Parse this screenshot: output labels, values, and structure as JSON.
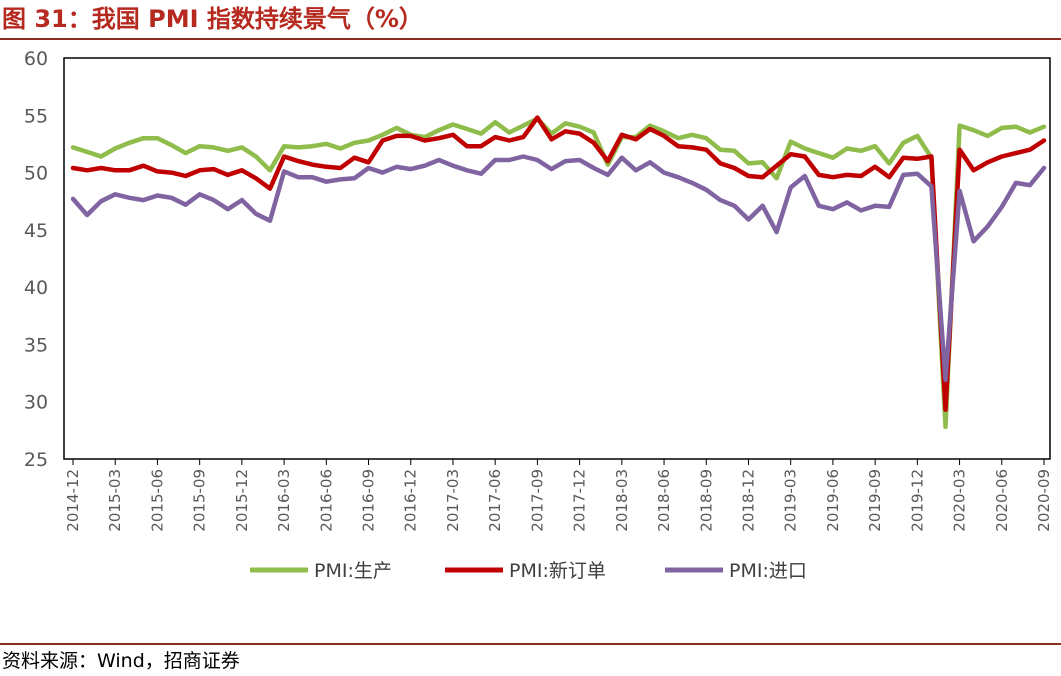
{
  "title": "图 31：我国 PMI 指数持续景气（%）",
  "source": "资料来源：Wind，招商证券",
  "chart_data": {
    "type": "line",
    "ylim": [
      25,
      60
    ],
    "y_ticks": [
      25,
      30,
      35,
      40,
      45,
      50,
      55,
      60
    ],
    "x_tick_labels": [
      "2014-12",
      "2015-03",
      "2015-06",
      "2015-09",
      "2015-12",
      "2016-03",
      "2016-06",
      "2016-09",
      "2016-12",
      "2017-03",
      "2017-06",
      "2017-09",
      "2017-12",
      "2018-03",
      "2018-06",
      "2018-09",
      "2018-12",
      "2019-03",
      "2019-06",
      "2019-09",
      "2019-12",
      "2020-03",
      "2020-06",
      "2020-09"
    ],
    "x": [
      "2014-12",
      "2015-01",
      "2015-02",
      "2015-03",
      "2015-04",
      "2015-05",
      "2015-06",
      "2015-07",
      "2015-08",
      "2015-09",
      "2015-10",
      "2015-11",
      "2015-12",
      "2016-01",
      "2016-02",
      "2016-03",
      "2016-04",
      "2016-05",
      "2016-06",
      "2016-07",
      "2016-08",
      "2016-09",
      "2016-10",
      "2016-11",
      "2016-12",
      "2017-01",
      "2017-02",
      "2017-03",
      "2017-04",
      "2017-05",
      "2017-06",
      "2017-07",
      "2017-08",
      "2017-09",
      "2017-10",
      "2017-11",
      "2017-12",
      "2018-01",
      "2018-02",
      "2018-03",
      "2018-04",
      "2018-05",
      "2018-06",
      "2018-07",
      "2018-08",
      "2018-09",
      "2018-10",
      "2018-11",
      "2018-12",
      "2019-01",
      "2019-02",
      "2019-03",
      "2019-04",
      "2019-05",
      "2019-06",
      "2019-07",
      "2019-08",
      "2019-09",
      "2019-10",
      "2019-11",
      "2019-12",
      "2020-01",
      "2020-02",
      "2020-03",
      "2020-04",
      "2020-05",
      "2020-06",
      "2020-07",
      "2020-08",
      "2020-09"
    ],
    "series": [
      {
        "name": "PMI:生产",
        "color": "#8fbc4a",
        "values": [
          52.2,
          51.8,
          51.4,
          52.1,
          52.6,
          53.0,
          53.0,
          52.4,
          51.7,
          52.3,
          52.2,
          51.9,
          52.2,
          51.4,
          50.2,
          52.3,
          52.2,
          52.3,
          52.5,
          52.1,
          52.6,
          52.8,
          53.3,
          53.9,
          53.3,
          53.1,
          53.7,
          54.2,
          53.8,
          53.4,
          54.4,
          53.5,
          54.1,
          54.7,
          53.4,
          54.3,
          54.0,
          53.5,
          50.7,
          53.1,
          53.1,
          54.1,
          53.6,
          53.0,
          53.3,
          53.0,
          52.0,
          51.9,
          50.8,
          50.9,
          49.5,
          52.7,
          52.1,
          51.7,
          51.3,
          52.1,
          51.9,
          52.3,
          50.8,
          52.6,
          53.2,
          51.3,
          27.8,
          54.1,
          53.7,
          53.2,
          53.9,
          54.0,
          53.5,
          54.0
        ]
      },
      {
        "name": "PMI:新订单",
        "color": "#c00000",
        "values": [
          50.4,
          50.2,
          50.4,
          50.2,
          50.2,
          50.6,
          50.1,
          50.0,
          49.7,
          50.2,
          50.3,
          49.8,
          50.2,
          49.5,
          48.6,
          51.4,
          51.0,
          50.7,
          50.5,
          50.4,
          51.3,
          50.9,
          52.8,
          53.2,
          53.2,
          52.8,
          53.0,
          53.3,
          52.3,
          52.3,
          53.1,
          52.8,
          53.1,
          54.8,
          52.9,
          53.6,
          53.4,
          52.6,
          51.0,
          53.3,
          52.9,
          53.8,
          53.2,
          52.3,
          52.2,
          52.0,
          50.8,
          50.4,
          49.7,
          49.6,
          50.6,
          51.6,
          51.4,
          49.8,
          49.6,
          49.8,
          49.7,
          50.5,
          49.6,
          51.3,
          51.2,
          51.4,
          29.3,
          52.0,
          50.2,
          50.9,
          51.4,
          51.7,
          52.0,
          52.8
        ]
      },
      {
        "name": "PMI:进口",
        "color": "#8064a2",
        "values": [
          47.7,
          46.3,
          47.5,
          48.1,
          47.8,
          47.6,
          48.0,
          47.8,
          47.2,
          48.1,
          47.6,
          46.8,
          47.6,
          46.4,
          45.8,
          50.1,
          49.6,
          49.6,
          49.2,
          49.4,
          49.5,
          50.4,
          50.0,
          50.5,
          50.3,
          50.6,
          51.1,
          50.6,
          50.2,
          49.9,
          51.1,
          51.1,
          51.4,
          51.1,
          50.3,
          51.0,
          51.1,
          50.4,
          49.8,
          51.3,
          50.2,
          50.9,
          50.0,
          49.6,
          49.1,
          48.5,
          47.6,
          47.1,
          45.9,
          47.1,
          44.8,
          48.7,
          49.7,
          47.1,
          46.8,
          47.4,
          46.7,
          47.1,
          47.0,
          49.8,
          49.9,
          48.8,
          31.9,
          48.4,
          44.0,
          45.3,
          47.0,
          49.1,
          48.9,
          50.4
        ]
      }
    ],
    "legend": "bottom",
    "grid": false
  }
}
